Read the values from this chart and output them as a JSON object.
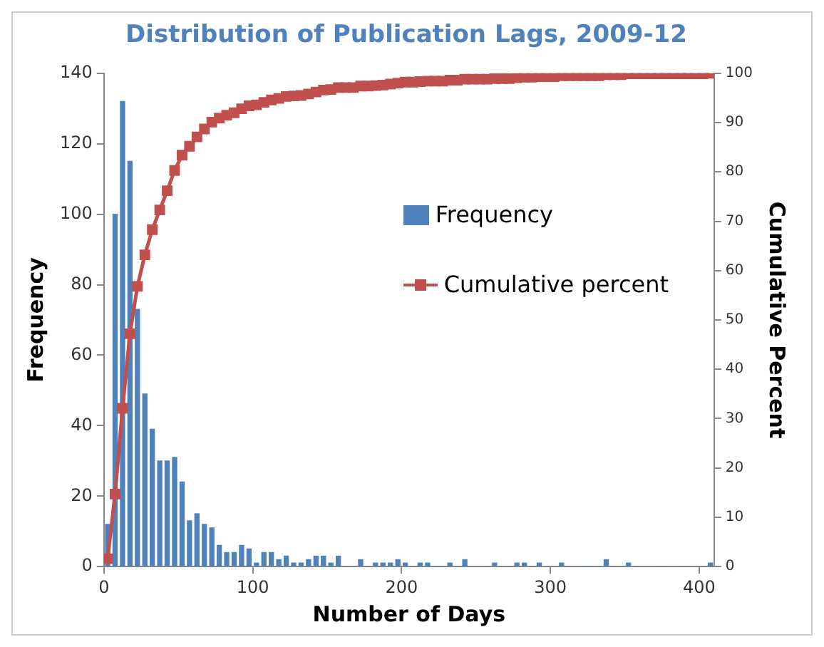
{
  "chart_data": {
    "type": "histogram",
    "title": "Distribution of Publication Lags, 2009-12",
    "xlabel": "Number of Days",
    "ylabel": "Frequency",
    "y2label": "Cumulative Percent",
    "bins": [
      0,
      5,
      10,
      15,
      20,
      25,
      30,
      35,
      40,
      45,
      50,
      55,
      60,
      65,
      70,
      75,
      80,
      85,
      90,
      95,
      100,
      105,
      110,
      115,
      120,
      125,
      130,
      135,
      140,
      145,
      150,
      155,
      160,
      165,
      170,
      175,
      180,
      185,
      190,
      195,
      200,
      205,
      210,
      215,
      220,
      225,
      230,
      235,
      240,
      245,
      250,
      255,
      260,
      265,
      270,
      275,
      280,
      285,
      290,
      295,
      300,
      305,
      310,
      315,
      320,
      325,
      330,
      335,
      340,
      345,
      350,
      355,
      360,
      365,
      370,
      375,
      380,
      385,
      390,
      395,
      400,
      405,
      410
    ],
    "series": [
      {
        "name": "Frequency",
        "type": "histogram",
        "color": "#4f81bd",
        "values": [
          12,
          100,
          132,
          115,
          73,
          49,
          39,
          30,
          30,
          31,
          24,
          13,
          15,
          12,
          11,
          6,
          4,
          4,
          6,
          5,
          1,
          4,
          4,
          2,
          3,
          1,
          1,
          2,
          3,
          3,
          1,
          3,
          0,
          0,
          2,
          0,
          1,
          1,
          1,
          2,
          1,
          0,
          1,
          1,
          0,
          0,
          1,
          0,
          2,
          0,
          0,
          0,
          1,
          0,
          0,
          1,
          1,
          0,
          1,
          0,
          0,
          1,
          0,
          0,
          0,
          0,
          0,
          2,
          0,
          0,
          1,
          0,
          0,
          0,
          0,
          0,
          0,
          0,
          0,
          0,
          0,
          1
        ]
      },
      {
        "name": "Cumulative percent",
        "type": "line",
        "axis": "y2",
        "color": "#c0504d",
        "x": [
          2.5,
          7.5,
          12.5,
          17.5,
          22.5,
          27.5,
          32.5,
          37.5,
          42.5,
          47.5,
          52.5,
          57.5,
          62.5,
          67.5,
          72.5,
          77.5,
          82.5,
          87.5,
          92.5,
          97.5,
          102.5,
          107.5,
          112.5,
          117.5,
          122.5,
          127.5,
          132.5,
          137.5,
          142.5,
          147.5,
          152.5,
          157.5,
          162.5,
          167.5,
          172.5,
          177.5,
          182.5,
          187.5,
          192.5,
          197.5,
          202.5,
          207.5,
          212.5,
          217.5,
          222.5,
          227.5,
          232.5,
          237.5,
          242.5,
          247.5,
          252.5,
          257.5,
          262.5,
          267.5,
          272.5,
          277.5,
          282.5,
          287.5,
          292.5,
          297.5,
          302.5,
          307.5,
          312.5,
          317.5,
          322.5,
          327.5,
          332.5,
          337.5,
          342.5,
          347.5,
          352.5,
          357.5,
          362.5,
          367.5,
          372.5,
          377.5,
          382.5,
          387.5,
          392.5,
          397.5,
          402.5,
          407.5
        ],
        "values": [
          1.6,
          14.7,
          32.1,
          47.2,
          56.8,
          63.2,
          68.3,
          72.3,
          76.2,
          80.3,
          83.4,
          85.2,
          87.1,
          88.7,
          90.1,
          90.9,
          91.5,
          92.0,
          92.8,
          93.4,
          93.6,
          94.1,
          94.6,
          94.9,
          95.3,
          95.4,
          95.5,
          95.8,
          96.2,
          96.6,
          96.7,
          97.1,
          97.1,
          97.1,
          97.4,
          97.4,
          97.5,
          97.6,
          97.8,
          98.0,
          98.2,
          98.2,
          98.3,
          98.4,
          98.4,
          98.4,
          98.6,
          98.6,
          98.8,
          98.8,
          98.8,
          98.8,
          98.9,
          98.9,
          98.9,
          99.1,
          99.2,
          99.2,
          99.3,
          99.3,
          99.3,
          99.5,
          99.5,
          99.5,
          99.5,
          99.5,
          99.5,
          99.7,
          99.7,
          99.7,
          99.9,
          99.9,
          99.9,
          99.9,
          99.9,
          99.9,
          99.9,
          99.9,
          99.9,
          99.9,
          99.9,
          100
        ]
      }
    ],
    "xlim": [
      0,
      410
    ],
    "xticks": [
      0,
      100,
      200,
      300,
      400
    ],
    "ylim": [
      0,
      140
    ],
    "yticks": [
      0,
      20,
      40,
      60,
      80,
      100,
      120,
      140
    ],
    "y2lim": [
      0,
      100
    ],
    "y2ticks": [
      0,
      10,
      20,
      30,
      40,
      50,
      60,
      70,
      80,
      90,
      100
    ],
    "marker": "square",
    "grid": false,
    "legend": "right"
  }
}
